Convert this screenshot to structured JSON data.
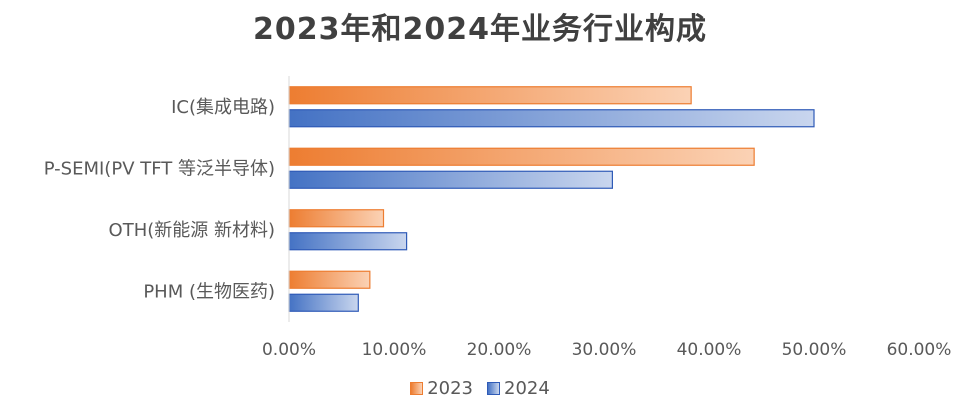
{
  "chart_data": {
    "type": "bar",
    "orientation": "horizontal",
    "title": "2023年和2024年业务行业构成",
    "categories": [
      "IC(集成电路)",
      "P-SEMI(PV TFT 等泛半导体)",
      "OTH(新能源 新材料)",
      "PHM (生物医药)"
    ],
    "series": [
      {
        "name": "2023",
        "values": [
          38.3,
          44.3,
          9.0,
          7.7
        ],
        "color": "#ED7D31",
        "fill_light": "#FBD2B5",
        "stroke": "#ED7D31"
      },
      {
        "name": "2024",
        "values": [
          50.0,
          30.8,
          11.2,
          6.6
        ],
        "color": "#4472C4",
        "fill_light": "#C9D6EE",
        "stroke": "#2F5BB7"
      }
    ],
    "xlim": [
      0,
      60
    ],
    "xticks": [
      0,
      10,
      20,
      30,
      40,
      50,
      60
    ],
    "xtick_labels": [
      "0.00%",
      "10.00%",
      "20.00%",
      "30.00%",
      "40.00%",
      "50.00%",
      "60.00%"
    ],
    "xlabel": "",
    "ylabel": "",
    "legend_position": "bottom",
    "grid": false
  }
}
